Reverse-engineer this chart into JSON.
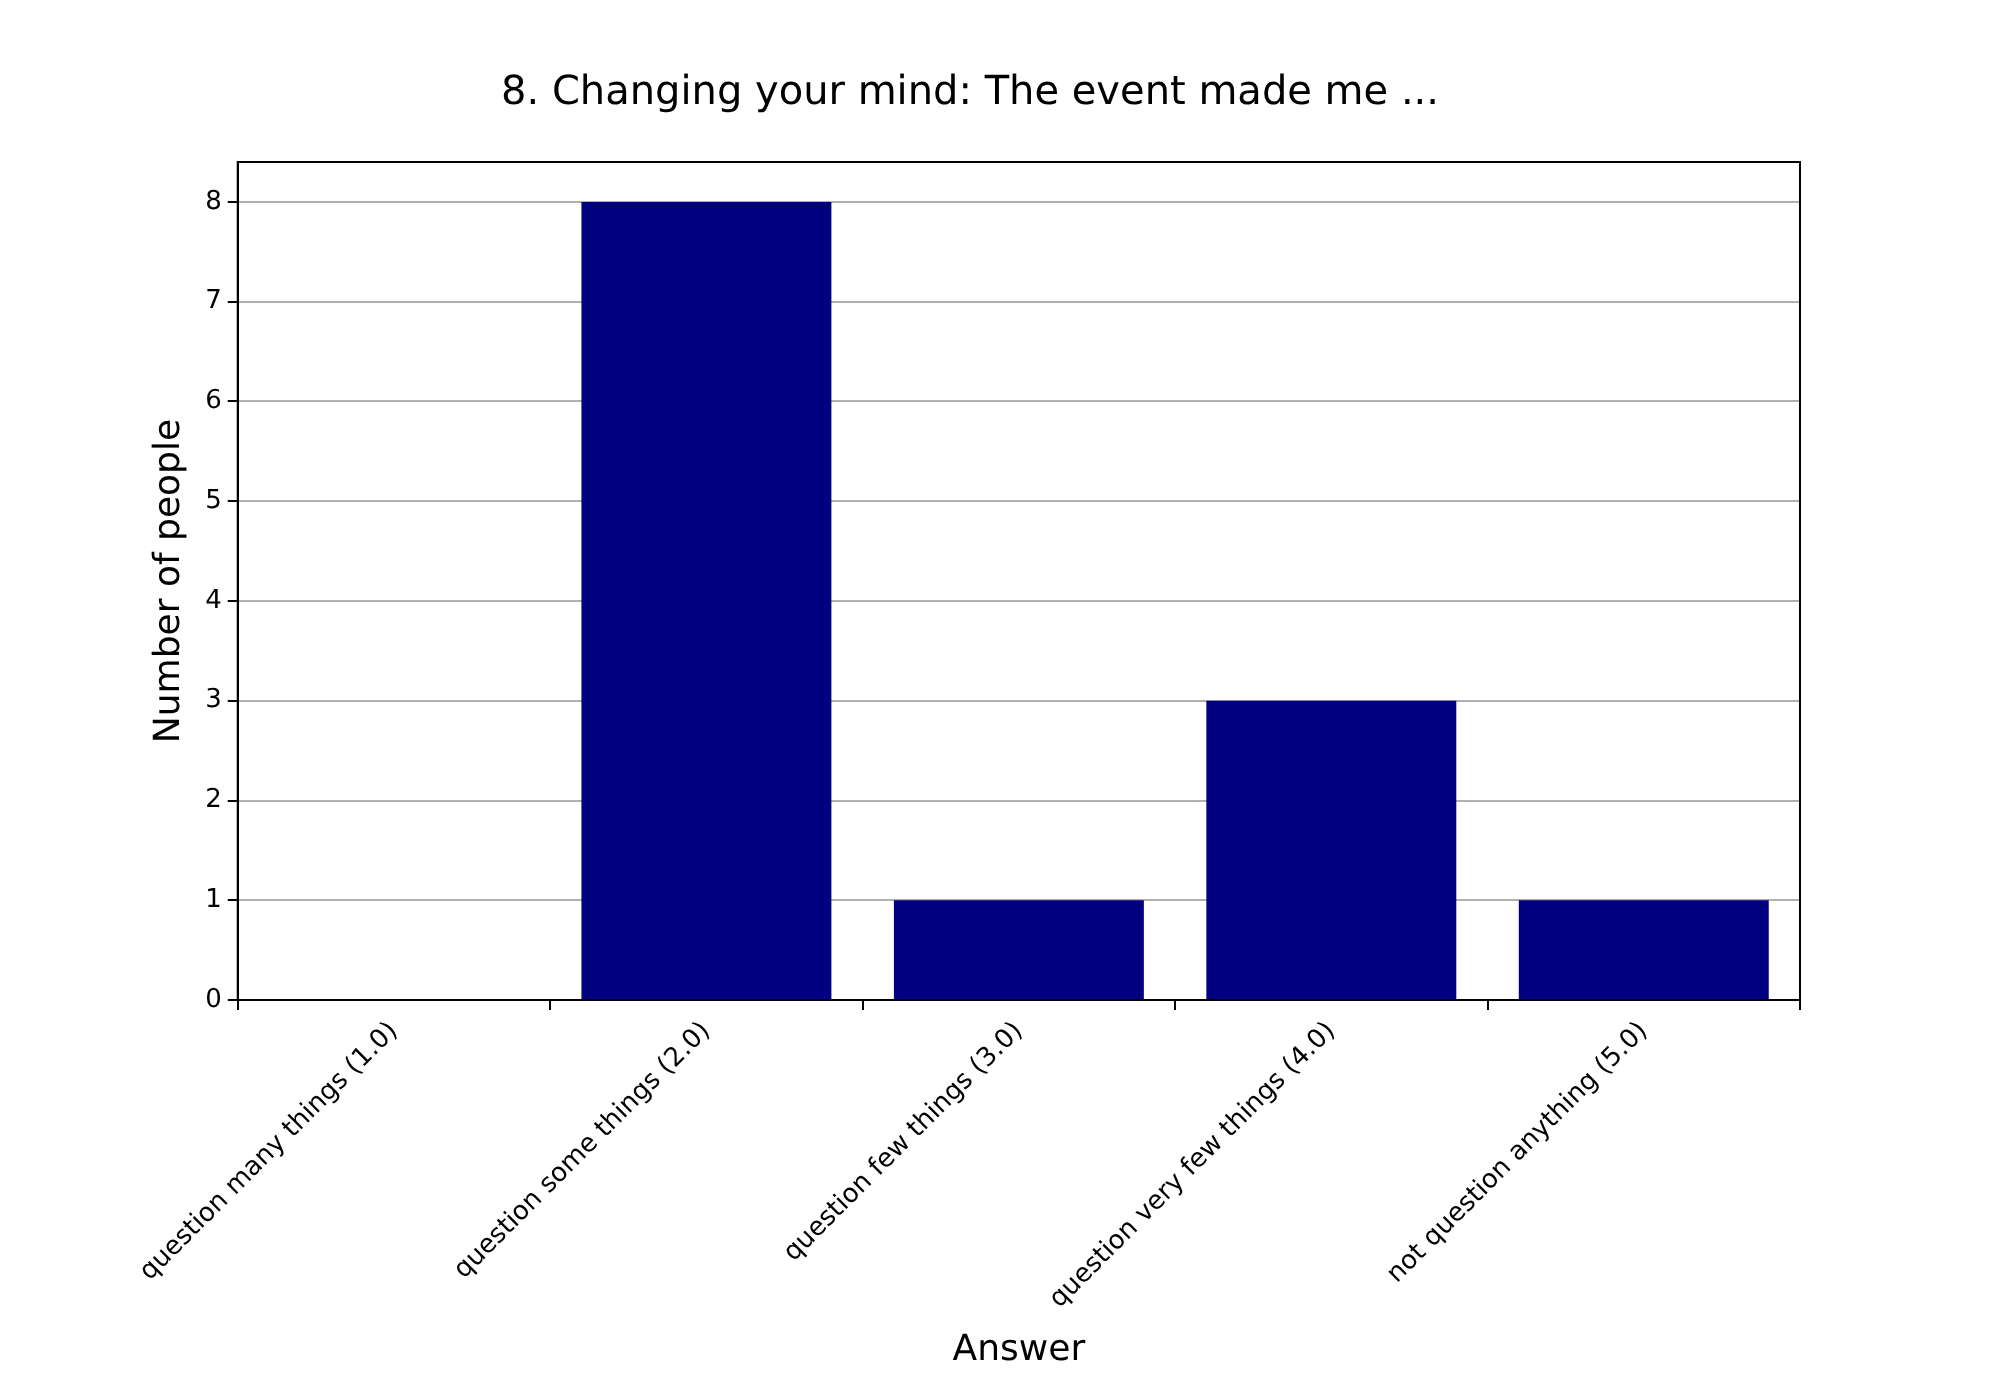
{
  "chart_data": {
    "type": "bar",
    "title": "8. Changing your mind: The event made me ...",
    "xlabel": "Answer",
    "ylabel": "Number of people",
    "categories": [
      "question many things (1.0)",
      "question some things (2.0)",
      "question few things (3.0)",
      "question very few things (4.0)",
      "not question anything (5.0)"
    ],
    "values": [
      0,
      8,
      1,
      3,
      1
    ],
    "color": "#000080",
    "ylim": [
      0,
      8.4
    ],
    "yticks": [
      0,
      1,
      2,
      3,
      4,
      5,
      6,
      7,
      8
    ],
    "grid": "y"
  }
}
